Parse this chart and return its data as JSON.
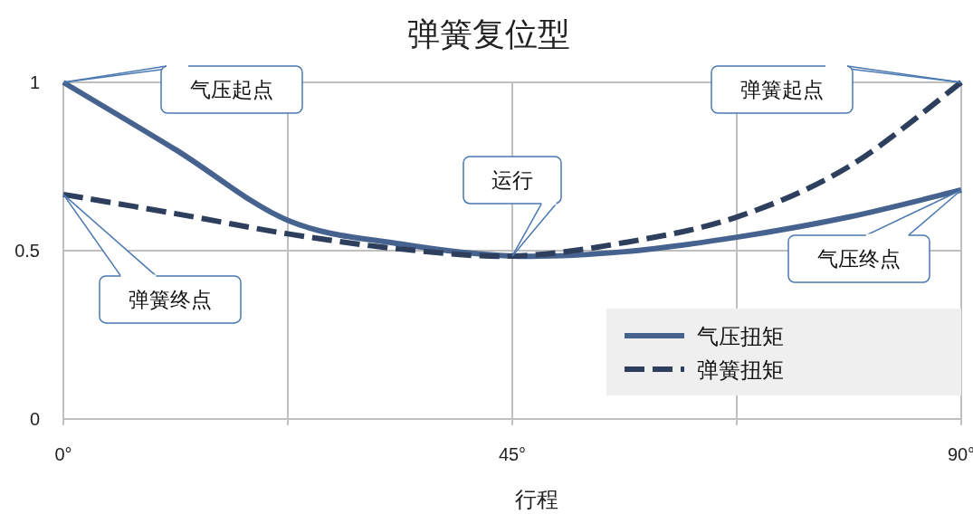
{
  "chart_data": {
    "type": "line",
    "title": "弹簧复位型",
    "xlabel": "行程",
    "xlim": [
      0,
      90
    ],
    "ylim": [
      0,
      1
    ],
    "xticks": [
      {
        "value": 0,
        "label": "0°"
      },
      {
        "value": 22.5,
        "label": null
      },
      {
        "value": 45,
        "label": "45°"
      },
      {
        "value": 67.5,
        "label": null
      },
      {
        "value": 90,
        "label": "90°"
      }
    ],
    "yticks": [
      0,
      0.5,
      1
    ],
    "grid": true,
    "legend": "bottom right",
    "x": [
      0,
      11.25,
      22.5,
      33.75,
      45,
      56.25,
      67.5,
      78.75,
      90
    ],
    "series": [
      {
        "name": "气压扭矩",
        "color": "#46638f",
        "line_style": "solid",
        "values": [
          1,
          0.8,
          0.59,
          0.52,
          0.484,
          0.497,
          0.54,
          0.6,
          0.68
        ]
      },
      {
        "name": "弹簧扭矩",
        "color": "#2e3f5e",
        "line_style": "dashed",
        "values": [
          0.667,
          0.61,
          0.55,
          0.505,
          0.484,
          0.524,
          0.6,
          0.75,
          1
        ]
      }
    ],
    "annotations": [
      {
        "text": "气压起点",
        "x": 0,
        "y": 1
      },
      {
        "text": "弹簧起点",
        "x": 90,
        "y": 1
      },
      {
        "text": "运行",
        "x": 45,
        "y": 0.484
      },
      {
        "text": "弹簧终点",
        "x": 0,
        "y": 0.667
      },
      {
        "text": "气压终点",
        "x": 90,
        "y": 0.68
      }
    ]
  }
}
